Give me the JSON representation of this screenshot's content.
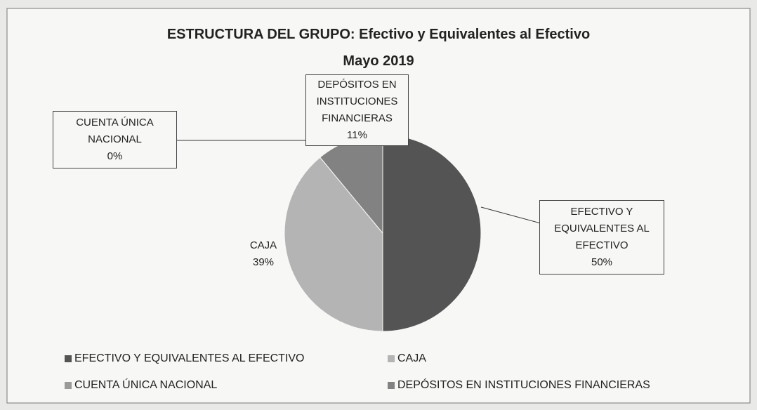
{
  "chart_data": {
    "type": "pie",
    "title": "ESTRUCTURA DEL GRUPO: Efectivo y Equivalentes al Efectivo",
    "subtitle": "Mayo 2019",
    "categories": [
      "EFECTIVO Y EQUIVALENTES AL EFECTIVO",
      "CAJA",
      "CUENTA ÚNICA NACIONAL",
      "DEPÓSITOS EN INSTITUCIONES FINANCIERAS"
    ],
    "values": [
      50,
      39,
      0,
      11
    ],
    "value_labels": [
      "50%",
      "39%",
      "0%",
      "11%"
    ],
    "colors": [
      "#545454",
      "#b4b4b4",
      "#9a9a9a",
      "#828282"
    ],
    "legend": "bottom"
  }
}
